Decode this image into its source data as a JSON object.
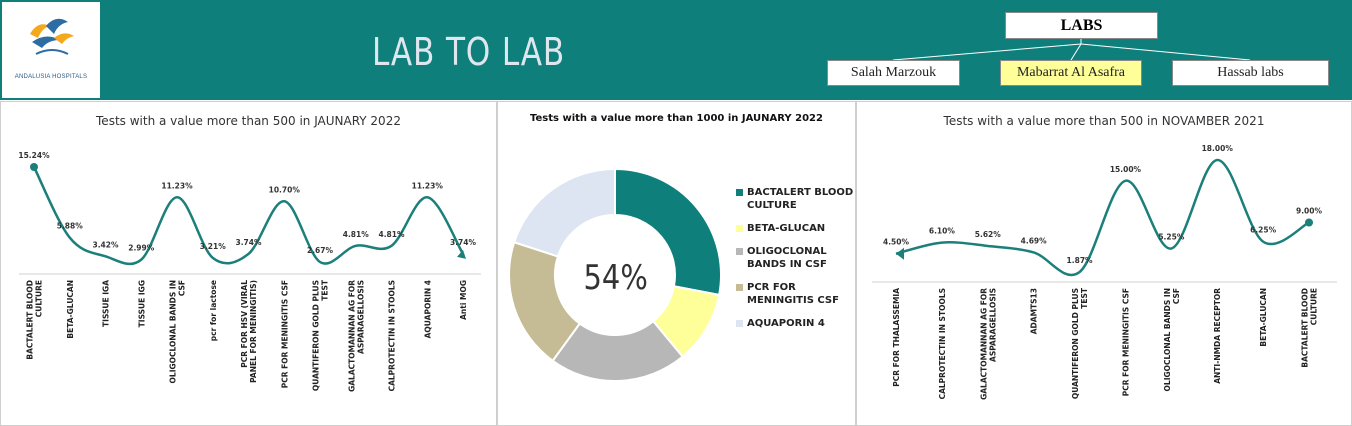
{
  "header": {
    "title": "LAB TO LAB",
    "logo_text": "ANDALUSIA HOSPITALS",
    "labs_title": "LABS",
    "labs": [
      {
        "label": "Salah Marzouk",
        "active": false
      },
      {
        "label": "Mabarrat Al Asafra",
        "active": true
      },
      {
        "label": "Hassab labs",
        "active": false
      }
    ],
    "colors": {
      "header_bg": "#0e7f7b",
      "active_lab": "#ffff99",
      "line": "#0e7f7b"
    }
  },
  "chart_data": [
    {
      "type": "line",
      "title": "Tests with a value more than 500 in JAUNARY 2022",
      "categories": [
        "BACTALERT BLOOD CULTURE",
        "BETA-GLUCAN",
        "TISSUE IGA",
        "TISSUE IGG",
        "OLIGOCLONAL BANDS IN CSF",
        "pcr for lactose",
        "PCR FOR HSV (VIRAL PANEL FOR MENINGITIS)",
        "PCR FOR MENINGITIS CSF",
        "QUANTIFERON GOLD PLUS TEST",
        "GALACTOMANNAN AG FOR ASPARAGELLOSIS",
        "CALPROTECTIN IN STOOLS",
        "AQUAPORIN 4",
        "Anti MOG"
      ],
      "values": [
        15.24,
        5.88,
        3.42,
        2.99,
        11.23,
        3.21,
        3.74,
        10.7,
        2.67,
        4.81,
        4.81,
        11.23,
        3.74
      ],
      "labels": [
        "15.24%",
        "5.88%",
        "3.42%",
        "2.99%",
        "11.23%",
        "3.21%",
        "3.74%",
        "10.70%",
        "2.67%",
        "4.81%",
        "4.81%",
        "11.23%",
        "3.74%"
      ],
      "color": "#1b7f7a"
    },
    {
      "type": "pie",
      "title": "Tests with a value more than 1000 in JAUNARY 2022",
      "center_label": "54%",
      "slices": [
        {
          "label": "BACTALERT BLOOD CULTURE",
          "value": 28,
          "color": "#0e7f7b"
        },
        {
          "label": "BETA-GLUCAN",
          "value": 11,
          "color": "#ffff99"
        },
        {
          "label": "OLIGOCLONAL BANDS IN CSF",
          "value": 21,
          "color": "#b7b7b7"
        },
        {
          "label": "PCR FOR MENINGITIS CSF",
          "value": 20,
          "color": "#c5bc96"
        },
        {
          "label": "AQUAPORIN 4",
          "value": 20,
          "color": "#dce5f1"
        }
      ]
    },
    {
      "type": "line",
      "title": "Tests with a value more than 500 in NOVAMBER 2021",
      "categories": [
        "PCR FOR THALASSEMIA",
        "CALPROTECTIN IN STOOLS",
        "GALACTOMANNAN AG FOR ASPARAGELLOSIS",
        "ADAMTS13",
        "QUANTIFERON GOLD PLUS TEST",
        "PCR FOR MENINGITIS CSF",
        "OLIGOCLONAL BANDS IN CSF",
        "ANTI-NMDA RECEPTOR",
        "BETA-GLUCAN",
        "BACTALERT BLOOD CULTURE"
      ],
      "values": [
        4.5,
        6.1,
        5.62,
        4.69,
        1.87,
        15.0,
        5.25,
        18.0,
        6.25,
        9.0
      ],
      "labels": [
        "4.50%",
        "6.10%",
        "5.62%",
        "4.69%",
        "1.87%",
        "15.00%",
        "5.25%",
        "18.00%",
        "6.25%",
        "9.00%"
      ],
      "color": "#1b7f7a"
    }
  ]
}
